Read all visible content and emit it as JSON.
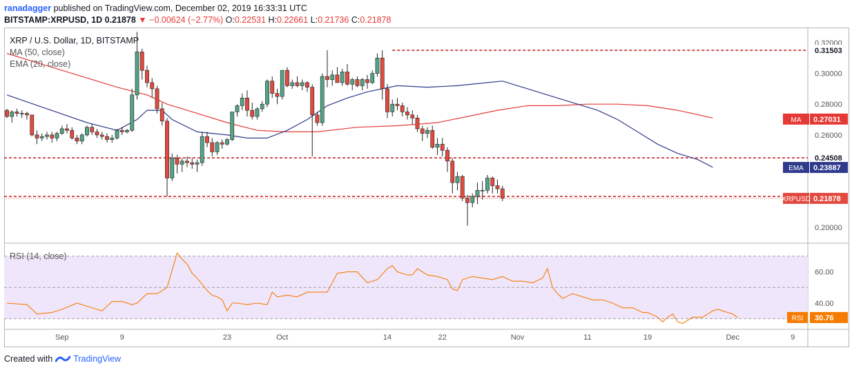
{
  "header": {
    "user": "ranadagger",
    "published": "published on TradingView.com, December 02, 2019 16:33:31 UTC",
    "symbol": "BITSTAMP:XRPUSD, 1D",
    "last": "0.21878",
    "change": "▼ −0.00624 (−2.77%)",
    "o_label": "O:",
    "o": "0.22531",
    "h_label": "H:",
    "h": "0.22661",
    "l_label": "L:",
    "l": "0.21736",
    "c_label": "C:",
    "c": "0.21878"
  },
  "legend": {
    "title": "XRP / U.S. Dollar, 1D, BITSTAMP",
    "ma": "MA (50, close)",
    "ema": "EMA (20, close)",
    "rsi": "RSI (14, close)"
  },
  "footer": {
    "created_with": "Created with",
    "brand": "TradingView"
  },
  "colors": {
    "up": "#53a385",
    "down": "#e24a3f",
    "ema": "#2f3a8c",
    "ma": "#e53935",
    "rsi": "#f57c00",
    "rsi_band": "#f0e6fb",
    "support": "#c62828"
  },
  "chart_data": [
    {
      "type": "candlestick",
      "title": "XRP / U.S. Dollar, 1D, BITSTAMP",
      "x_ticks": [
        {
          "label": "Sep",
          "index": 11
        },
        {
          "label": "9",
          "index": 23
        },
        {
          "label": "23",
          "index": 44
        },
        {
          "label": "Oct",
          "index": 55
        },
        {
          "label": "14",
          "index": 76
        },
        {
          "label": "22",
          "index": 87
        },
        {
          "label": "Nov",
          "index": 102
        },
        {
          "label": "11",
          "index": 116
        },
        {
          "label": "19",
          "index": 128
        },
        {
          "label": "Dec",
          "index": 145
        },
        {
          "label": "9",
          "index": 157
        }
      ],
      "y_ticks": [
        "0.32000",
        "0.30000",
        "0.28000",
        "0.26000",
        "0.20000"
      ],
      "ylim": [
        0.191,
        0.328
      ],
      "candles": [
        [
          0.276,
          0.277,
          0.271,
          0.272
        ],
        [
          0.272,
          0.276,
          0.268,
          0.275
        ],
        [
          0.275,
          0.277,
          0.272,
          0.274
        ],
        [
          0.274,
          0.276,
          0.271,
          0.274
        ],
        [
          0.274,
          0.275,
          0.27,
          0.273
        ],
        [
          0.273,
          0.273,
          0.259,
          0.26
        ],
        [
          0.26,
          0.263,
          0.254,
          0.258
        ],
        [
          0.258,
          0.261,
          0.256,
          0.259
        ],
        [
          0.259,
          0.262,
          0.257,
          0.26
        ],
        [
          0.26,
          0.262,
          0.255,
          0.258
        ],
        [
          0.258,
          0.262,
          0.256,
          0.261
        ],
        [
          0.261,
          0.266,
          0.26,
          0.264
        ],
        [
          0.264,
          0.267,
          0.261,
          0.263
        ],
        [
          0.263,
          0.265,
          0.257,
          0.258
        ],
        [
          0.258,
          0.26,
          0.254,
          0.256
        ],
        [
          0.256,
          0.261,
          0.254,
          0.26
        ],
        [
          0.26,
          0.266,
          0.259,
          0.265
        ],
        [
          0.265,
          0.267,
          0.26,
          0.262
        ],
        [
          0.262,
          0.264,
          0.258,
          0.26
        ],
        [
          0.26,
          0.262,
          0.257,
          0.259
        ],
        [
          0.259,
          0.261,
          0.255,
          0.257
        ],
        [
          0.257,
          0.26,
          0.255,
          0.258
        ],
        [
          0.258,
          0.264,
          0.257,
          0.263
        ],
        [
          0.263,
          0.265,
          0.26,
          0.262
        ],
        [
          0.262,
          0.264,
          0.261,
          0.263
        ],
        [
          0.263,
          0.29,
          0.262,
          0.286
        ],
        [
          0.286,
          0.327,
          0.283,
          0.314
        ],
        [
          0.314,
          0.316,
          0.296,
          0.302
        ],
        [
          0.302,
          0.305,
          0.291,
          0.294
        ],
        [
          0.294,
          0.297,
          0.284,
          0.29
        ],
        [
          0.29,
          0.292,
          0.274,
          0.277
        ],
        [
          0.277,
          0.281,
          0.266,
          0.269
        ],
        [
          0.269,
          0.271,
          0.22,
          0.232
        ],
        [
          0.232,
          0.248,
          0.23,
          0.245
        ],
        [
          0.245,
          0.247,
          0.235,
          0.241
        ],
        [
          0.241,
          0.245,
          0.236,
          0.243
        ],
        [
          0.243,
          0.246,
          0.239,
          0.242
        ],
        [
          0.242,
          0.245,
          0.238,
          0.241
        ],
        [
          0.241,
          0.244,
          0.236,
          0.242
        ],
        [
          0.242,
          0.262,
          0.24,
          0.259
        ],
        [
          0.259,
          0.262,
          0.252,
          0.255
        ],
        [
          0.255,
          0.258,
          0.246,
          0.249
        ],
        [
          0.249,
          0.256,
          0.247,
          0.255
        ],
        [
          0.255,
          0.257,
          0.251,
          0.254
        ],
        [
          0.254,
          0.258,
          0.253,
          0.257
        ],
        [
          0.257,
          0.275,
          0.256,
          0.275
        ],
        [
          0.275,
          0.28,
          0.272,
          0.279
        ],
        [
          0.279,
          0.287,
          0.276,
          0.284
        ],
        [
          0.284,
          0.289,
          0.272,
          0.276
        ],
        [
          0.276,
          0.281,
          0.27,
          0.272
        ],
        [
          0.272,
          0.278,
          0.27,
          0.277
        ],
        [
          0.277,
          0.282,
          0.275,
          0.28
        ],
        [
          0.28,
          0.296,
          0.278,
          0.295
        ],
        [
          0.295,
          0.298,
          0.284,
          0.287
        ],
        [
          0.287,
          0.29,
          0.28,
          0.285
        ],
        [
          0.285,
          0.302,
          0.283,
          0.302
        ],
        [
          0.302,
          0.304,
          0.291,
          0.292
        ],
        [
          0.292,
          0.296,
          0.29,
          0.294
        ],
        [
          0.294,
          0.298,
          0.291,
          0.292
        ],
        [
          0.292,
          0.296,
          0.289,
          0.294
        ],
        [
          0.294,
          0.295,
          0.288,
          0.291
        ],
        [
          0.291,
          0.293,
          0.246,
          0.273
        ],
        [
          0.273,
          0.275,
          0.266,
          0.268
        ],
        [
          0.268,
          0.3,
          0.266,
          0.298
        ],
        [
          0.298,
          0.315,
          0.291,
          0.296
        ],
        [
          0.296,
          0.302,
          0.292,
          0.299
        ],
        [
          0.299,
          0.304,
          0.295,
          0.294
        ],
        [
          0.294,
          0.303,
          0.292,
          0.301
        ],
        [
          0.301,
          0.306,
          0.292,
          0.293
        ],
        [
          0.293,
          0.297,
          0.289,
          0.296
        ],
        [
          0.296,
          0.298,
          0.291,
          0.292
        ],
        [
          0.292,
          0.297,
          0.289,
          0.296
        ],
        [
          0.296,
          0.299,
          0.29,
          0.294
        ],
        [
          0.294,
          0.302,
          0.293,
          0.3
        ],
        [
          0.3,
          0.313,
          0.298,
          0.31
        ],
        [
          0.31,
          0.315,
          0.283,
          0.29
        ],
        [
          0.29,
          0.293,
          0.271,
          0.275
        ],
        [
          0.275,
          0.283,
          0.272,
          0.28
        ],
        [
          0.28,
          0.284,
          0.276,
          0.279
        ],
        [
          0.279,
          0.281,
          0.272,
          0.275
        ],
        [
          0.275,
          0.278,
          0.27,
          0.273
        ],
        [
          0.273,
          0.276,
          0.267,
          0.271
        ],
        [
          0.271,
          0.273,
          0.262,
          0.264
        ],
        [
          0.264,
          0.266,
          0.256,
          0.261
        ],
        [
          0.261,
          0.265,
          0.258,
          0.263
        ],
        [
          0.263,
          0.266,
          0.251,
          0.252
        ],
        [
          0.252,
          0.258,
          0.247,
          0.254
        ],
        [
          0.254,
          0.258,
          0.246,
          0.25
        ],
        [
          0.25,
          0.252,
          0.236,
          0.243
        ],
        [
          0.243,
          0.245,
          0.222,
          0.229
        ],
        [
          0.229,
          0.236,
          0.224,
          0.233
        ],
        [
          0.233,
          0.234,
          0.217,
          0.219
        ],
        [
          0.219,
          0.221,
          0.201,
          0.216
        ],
        [
          0.216,
          0.222,
          0.213,
          0.22
        ],
        [
          0.22,
          0.229,
          0.215,
          0.224
        ],
        [
          0.224,
          0.23,
          0.218,
          0.224
        ],
        [
          0.224,
          0.234,
          0.222,
          0.232
        ],
        [
          0.232,
          0.233,
          0.222,
          0.227
        ],
        [
          0.227,
          0.231,
          0.222,
          0.225
        ],
        [
          0.225,
          0.227,
          0.217,
          0.219
        ]
      ],
      "first_candle_index": 0,
      "ema20": [
        [
          0,
          0.286
        ],
        [
          8,
          0.277
        ],
        [
          16,
          0.268
        ],
        [
          22,
          0.263
        ],
        [
          26,
          0.27
        ],
        [
          28,
          0.276
        ],
        [
          31,
          0.276
        ],
        [
          33,
          0.27
        ],
        [
          38,
          0.262
        ],
        [
          44,
          0.26
        ],
        [
          48,
          0.258
        ],
        [
          52,
          0.258
        ],
        [
          56,
          0.263
        ],
        [
          60,
          0.27
        ],
        [
          64,
          0.279
        ],
        [
          68,
          0.284
        ],
        [
          72,
          0.288
        ],
        [
          78,
          0.292
        ],
        [
          84,
          0.291
        ],
        [
          90,
          0.292
        ],
        [
          96,
          0.294
        ],
        [
          99,
          0.295
        ],
        [
          102,
          0.292
        ],
        [
          106,
          0.288
        ],
        [
          110,
          0.284
        ],
        [
          114,
          0.28
        ],
        [
          118,
          0.276
        ],
        [
          122,
          0.27
        ],
        [
          126,
          0.262
        ],
        [
          130,
          0.254
        ],
        [
          134,
          0.248
        ],
        [
          138,
          0.244
        ],
        [
          141,
          0.239
        ]
      ],
      "ma50": [
        [
          0,
          0.313
        ],
        [
          8,
          0.305
        ],
        [
          16,
          0.297
        ],
        [
          22,
          0.291
        ],
        [
          28,
          0.286
        ],
        [
          32,
          0.28
        ],
        [
          38,
          0.274
        ],
        [
          44,
          0.268
        ],
        [
          50,
          0.263
        ],
        [
          56,
          0.262
        ],
        [
          62,
          0.262
        ],
        [
          70,
          0.265
        ],
        [
          78,
          0.266
        ],
        [
          86,
          0.268
        ],
        [
          92,
          0.272
        ],
        [
          98,
          0.276
        ],
        [
          104,
          0.279
        ],
        [
          110,
          0.279
        ],
        [
          116,
          0.28
        ],
        [
          122,
          0.28
        ],
        [
          128,
          0.279
        ],
        [
          134,
          0.276
        ],
        [
          141,
          0.271
        ]
      ],
      "levels": [
        {
          "label": "0.31503",
          "value": 0.31503
        },
        {
          "label": "0.24508",
          "value": 0.24508
        },
        {
          "label": "0.22000",
          "value": 0.22
        }
      ],
      "price_tags": [
        {
          "name": "MA",
          "label": "0.27031",
          "value": 0.27031
        },
        {
          "name": "EMA",
          "label": "0.23887",
          "value": 0.23887
        },
        {
          "name": "XRPUSD",
          "label": "0.21878",
          "value": 0.21878
        }
      ]
    },
    {
      "type": "line",
      "title": "RSI (14, close)",
      "ylim": [
        25,
        77
      ],
      "band": [
        30,
        70
      ],
      "y_ticks": [
        "60.00",
        "40.00"
      ],
      "values": [
        [
          0,
          40
        ],
        [
          4,
          39
        ],
        [
          6,
          33
        ],
        [
          9,
          34
        ],
        [
          11,
          36
        ],
        [
          14,
          40
        ],
        [
          16,
          38
        ],
        [
          19,
          35
        ],
        [
          21,
          41
        ],
        [
          23,
          41
        ],
        [
          25,
          39
        ],
        [
          26,
          40
        ],
        [
          28,
          46
        ],
        [
          30,
          46
        ],
        [
          32,
          50
        ],
        [
          34,
          72
        ],
        [
          35,
          68
        ],
        [
          36,
          65
        ],
        [
          37,
          59
        ],
        [
          38,
          56
        ],
        [
          39,
          52
        ],
        [
          40,
          48
        ],
        [
          41,
          45
        ],
        [
          42,
          44
        ],
        [
          43,
          42
        ],
        [
          44,
          35
        ],
        [
          45,
          40
        ],
        [
          46,
          40
        ],
        [
          48,
          39
        ],
        [
          50,
          40
        ],
        [
          52,
          39
        ],
        [
          53,
          47
        ],
        [
          54,
          44
        ],
        [
          56,
          45
        ],
        [
          58,
          44
        ],
        [
          60,
          47
        ],
        [
          62,
          47
        ],
        [
          64,
          47
        ],
        [
          66,
          59
        ],
        [
          68,
          60
        ],
        [
          70,
          60
        ],
        [
          72,
          53
        ],
        [
          74,
          55
        ],
        [
          76,
          62
        ],
        [
          77,
          64
        ],
        [
          78,
          60
        ],
        [
          80,
          58
        ],
        [
          81,
          58
        ],
        [
          82,
          62
        ],
        [
          83,
          60
        ],
        [
          84,
          58
        ],
        [
          86,
          57
        ],
        [
          88,
          55
        ],
        [
          89,
          49
        ],
        [
          90,
          48
        ],
        [
          91,
          55
        ],
        [
          93,
          57
        ],
        [
          95,
          56
        ],
        [
          97,
          55
        ],
        [
          99,
          57
        ],
        [
          101,
          54
        ],
        [
          103,
          54
        ],
        [
          105,
          53
        ],
        [
          107,
          56
        ],
        [
          108,
          62
        ],
        [
          109,
          50
        ],
        [
          110,
          46
        ],
        [
          111,
          43
        ],
        [
          113,
          46
        ],
        [
          115,
          44
        ],
        [
          117,
          42
        ],
        [
          119,
          42
        ],
        [
          121,
          40
        ],
        [
          123,
          37
        ],
        [
          125,
          37
        ],
        [
          127,
          34
        ],
        [
          128,
          34
        ],
        [
          130,
          31
        ],
        [
          131,
          28
        ],
        [
          132,
          31
        ],
        [
          133,
          33
        ],
        [
          134,
          28
        ],
        [
          135,
          27
        ],
        [
          137,
          31
        ],
        [
          139,
          31
        ],
        [
          140,
          33
        ],
        [
          141,
          35
        ],
        [
          142,
          36
        ],
        [
          143,
          35
        ],
        [
          144,
          34
        ],
        [
          145,
          33
        ],
        [
          146,
          30.76
        ]
      ],
      "level_tag": {
        "name": "RSI",
        "label": "30.76",
        "value": 30.76
      }
    }
  ]
}
